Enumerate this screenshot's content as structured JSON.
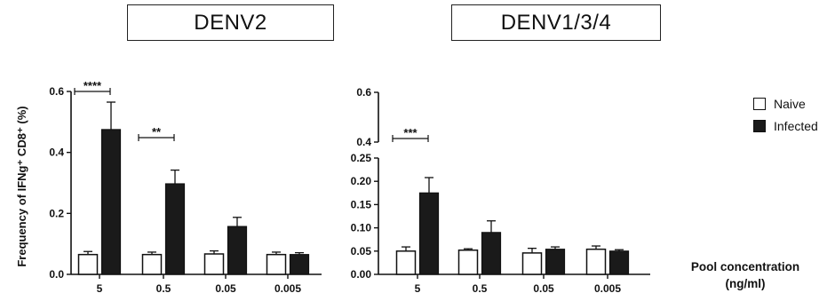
{
  "panels": {
    "left_title": "DENV2",
    "right_title": "DENV1/3/4"
  },
  "axes": {
    "ylabel": "Frequency of IFNg⁺ CD8⁺ (%)",
    "xlabel_line1": "Pool concentration",
    "xlabel_line2": "(ng/ml)"
  },
  "legend": {
    "naive": "Naive",
    "infected": "Infected"
  },
  "colors": {
    "naive_fill": "#ffffff",
    "infected_fill": "#1a1a1a",
    "stroke": "#111111"
  },
  "chart_data": [
    {
      "type": "bar",
      "title": "DENV2",
      "categories": [
        "5",
        "0.5",
        "0.05",
        "0.005"
      ],
      "series": [
        {
          "name": "Naive",
          "values": [
            0.065,
            0.065,
            0.067,
            0.065
          ],
          "errors": [
            0.01,
            0.008,
            0.01,
            0.008
          ]
        },
        {
          "name": "Infected",
          "values": [
            0.475,
            0.297,
            0.157,
            0.065
          ],
          "errors": [
            0.09,
            0.045,
            0.03,
            0.006
          ]
        }
      ],
      "ylim": [
        0,
        0.6
      ],
      "yticks": [
        "0.0",
        "0.2",
        "0.4",
        "0.6"
      ],
      "significance": [
        {
          "category_index": 0,
          "label": "****"
        },
        {
          "category_index": 1,
          "label": "**"
        }
      ]
    },
    {
      "type": "bar",
      "title": "DENV1/3/4",
      "categories": [
        "5",
        "0.5",
        "0.05",
        "0.005"
      ],
      "series": [
        {
          "name": "Naive",
          "values": [
            0.05,
            0.052,
            0.046,
            0.054
          ],
          "errors": [
            0.009,
            0.003,
            0.01,
            0.007
          ]
        },
        {
          "name": "Infected",
          "values": [
            0.175,
            0.09,
            0.054,
            0.05
          ],
          "errors": [
            0.033,
            0.025,
            0.005,
            0.003
          ]
        }
      ],
      "ylim": [
        0,
        0.6
      ],
      "axis_break": [
        0.25,
        0.4
      ],
      "yticks": [
        "0.00",
        "0.05",
        "0.10",
        "0.15",
        "0.20",
        "0.25",
        "0.4",
        "0.6"
      ],
      "significance": [
        {
          "category_index": 0,
          "label": "***"
        }
      ]
    }
  ]
}
